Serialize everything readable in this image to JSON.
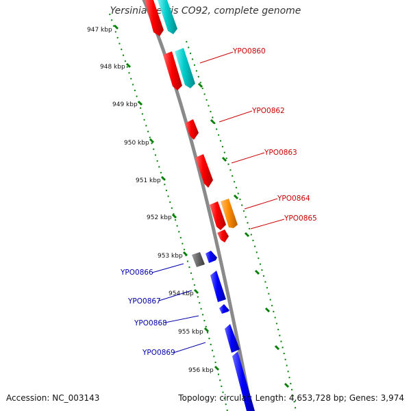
{
  "title": "Yersinia pestis CO92, complete genome",
  "accession": "Accession: NC_003143",
  "summary": "Topology: circular; Length: 4,653,728 bp; Genes: 3,974",
  "tick_labels": [
    "947 kbp",
    "948 kbp",
    "949 kbp",
    "950 kbp",
    "951 kbp",
    "952 kbp",
    "953 kbp",
    "954 kbp",
    "955 kbp",
    "956 kbp"
  ],
  "gene_labels_forward": [
    "YPO0860",
    "YPO0862",
    "YPO0863",
    "YPO0864",
    "YPO0865"
  ],
  "gene_labels_reverse": [
    "YPO0866",
    "YPO0867",
    "YPO0868",
    "YPO0869"
  ],
  "colors": {
    "backbone": "#888888",
    "ticks": "#008000",
    "forward_cds": "#ff0000",
    "forward_rna": "#00cccc",
    "forward_other": "#ff8c00",
    "reverse_cds": "#0000ff",
    "reverse_other": "#666666",
    "forward_label": "#cc0000",
    "reverse_label": "#0000aa"
  }
}
